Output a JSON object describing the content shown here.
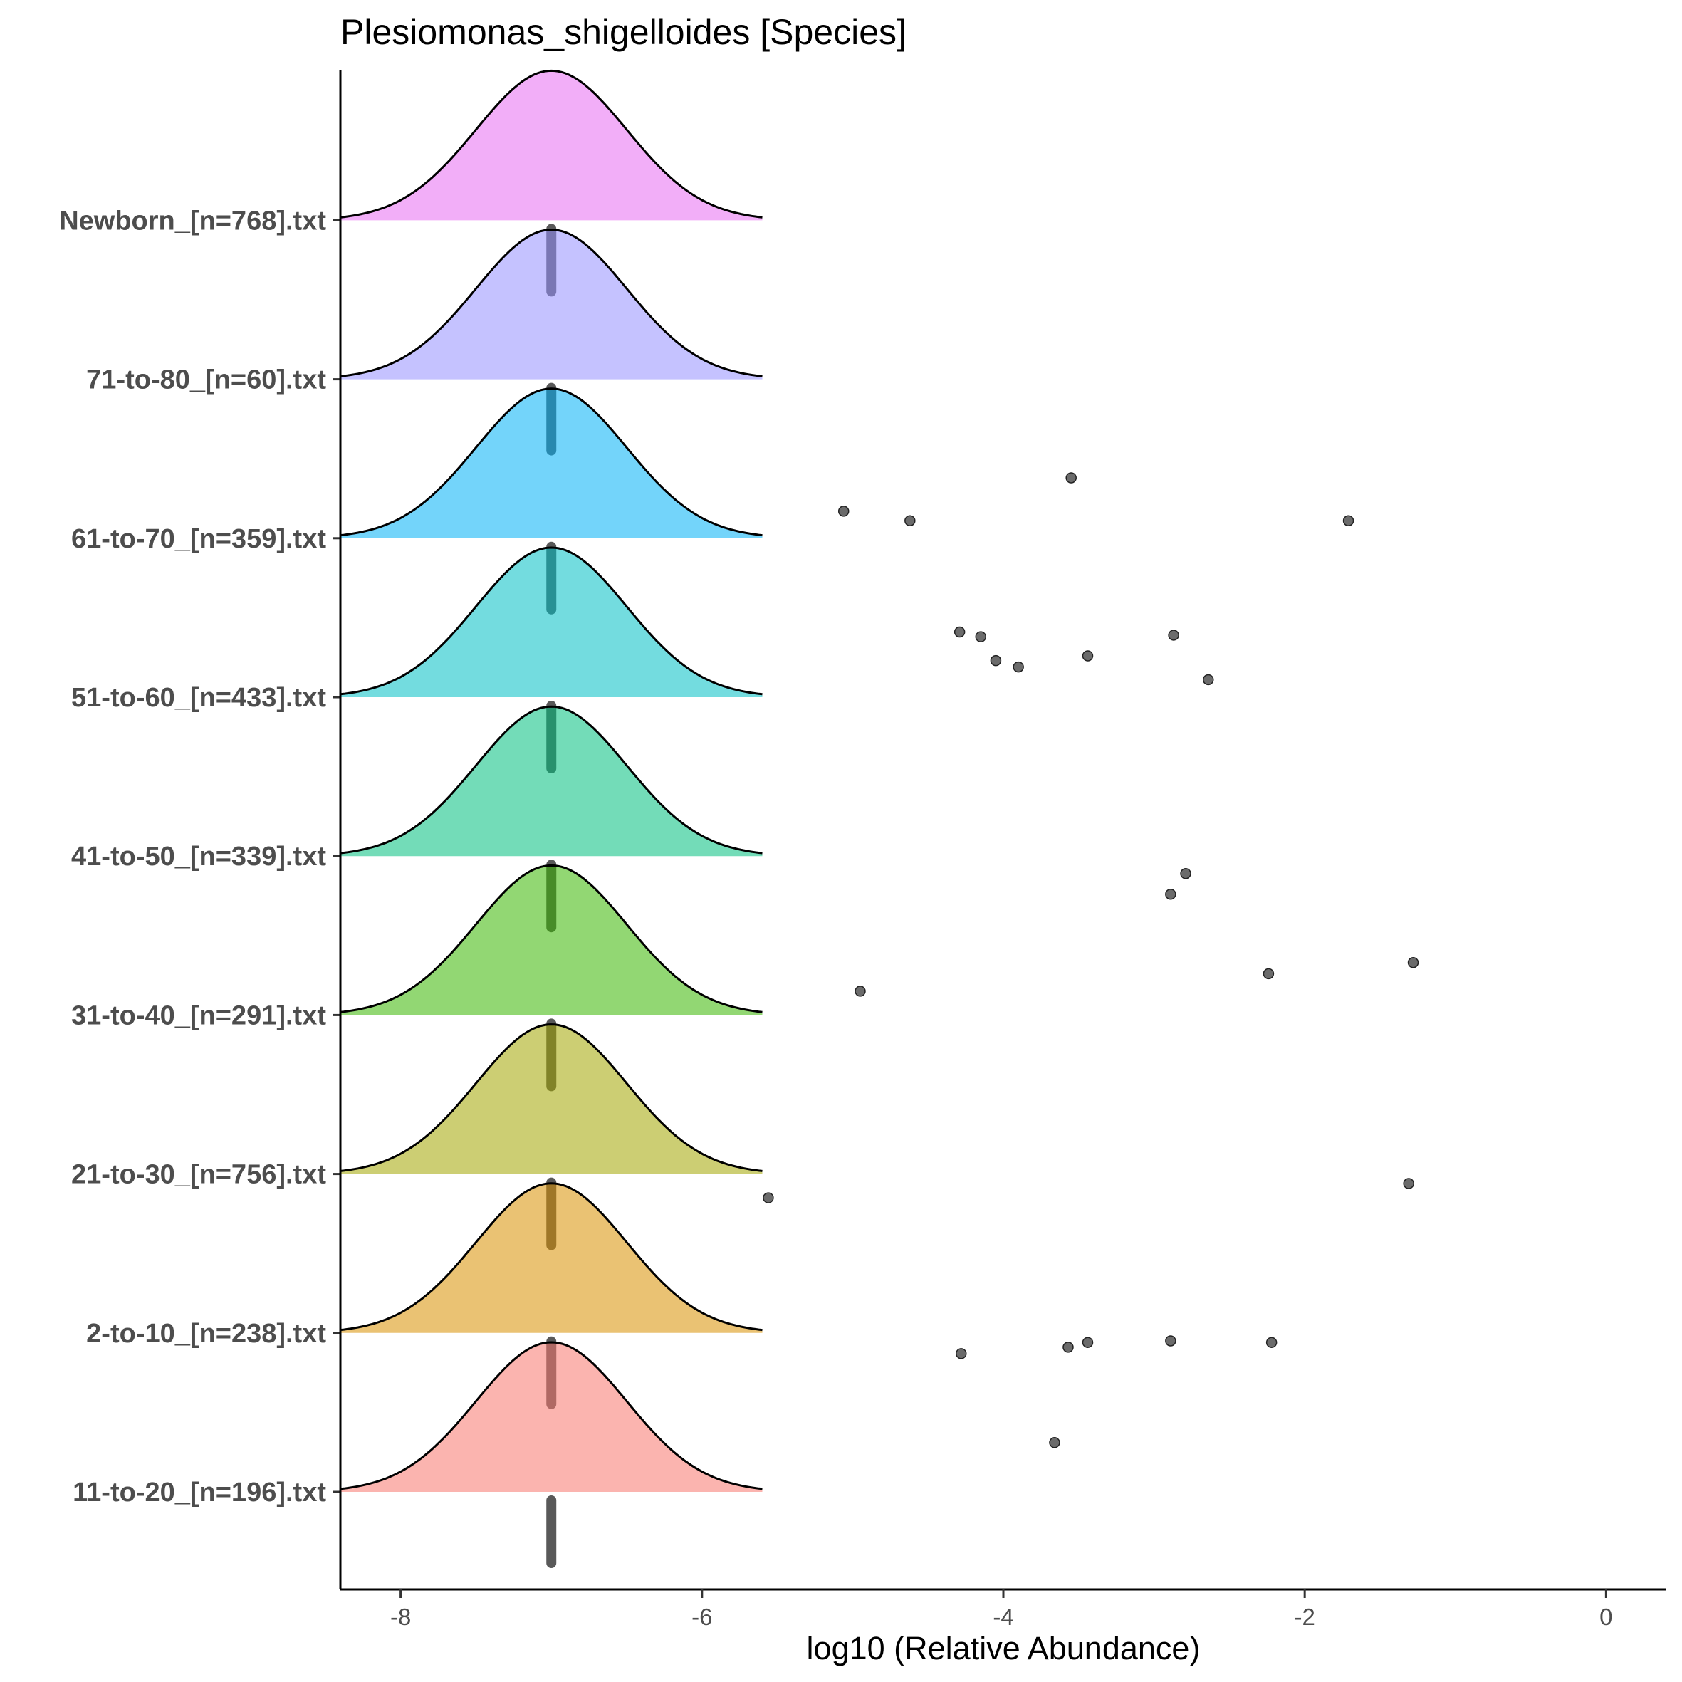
{
  "chart_data": {
    "type": "ridgeline",
    "title": "Plesiomonas_shigelloides [Species]",
    "xlabel": "log10 (Relative Abundance)",
    "ylabel": "",
    "xlim": [
      -8.4,
      0.4
    ],
    "x_ticks": [
      -8,
      -6,
      -4,
      -2,
      0
    ],
    "x_tick_labels": [
      "-8",
      "-6",
      "-4",
      "-2",
      "0"
    ],
    "grid": false,
    "legend": "none",
    "median_x": -7,
    "density_x_range": [
      -8.4,
      -5.6
    ],
    "density_center": -7,
    "density_sd": 0.5,
    "series": [
      {
        "name": "11-to-20_[n=196].txt",
        "fill": "#F8766D",
        "median_color": "#000000",
        "outliers": [
          {
            "x": -3.66,
            "y": -0.31
          }
        ]
      },
      {
        "name": "2-to-10_[n=238].txt",
        "fill": "#D89000",
        "median_color": "#000000",
        "outliers": [
          {
            "x": -4.28,
            "y": 0.13
          },
          {
            "x": -3.57,
            "y": 0.09
          },
          {
            "x": -3.44,
            "y": 0.06
          },
          {
            "x": -2.89,
            "y": 0.05
          },
          {
            "x": -2.22,
            "y": 0.06
          }
        ]
      },
      {
        "name": "21-to-30_[n=756].txt",
        "fill": "#A3A500",
        "median_color": "#000000",
        "outliers": [
          {
            "x": -5.56,
            "y": 0.15
          },
          {
            "x": -1.31,
            "y": 0.06
          }
        ]
      },
      {
        "name": "31-to-40_[n=291].txt",
        "fill": "#39B600",
        "median_color": "#000000",
        "outliers": [
          {
            "x": -4.95,
            "y": -0.15
          },
          {
            "x": -2.24,
            "y": -0.26
          },
          {
            "x": -1.28,
            "y": -0.33
          }
        ]
      },
      {
        "name": "41-to-50_[n=339].txt",
        "fill": "#00BF7D",
        "median_color": "#000000",
        "outliers": [
          {
            "x": -2.89,
            "y": 0.24
          },
          {
            "x": -2.79,
            "y": 0.11
          }
        ]
      },
      {
        "name": "51-to-60_[n=433].txt",
        "fill": "#00BFC4",
        "median_color": "#000000",
        "outliers": [
          {
            "x": -2.64,
            "y": -0.11
          },
          {
            "x": -3.9,
            "y": -0.19
          },
          {
            "x": -4.05,
            "y": -0.23
          },
          {
            "x": -3.44,
            "y": -0.26
          },
          {
            "x": -4.15,
            "y": -0.38
          },
          {
            "x": -4.29,
            "y": -0.41
          },
          {
            "x": -2.87,
            "y": -0.39
          }
        ]
      },
      {
        "name": "61-to-70_[n=359].txt",
        "fill": "#00B0F6",
        "median_color": "#000000",
        "outliers": [
          {
            "x": -4.62,
            "y": -0.11
          },
          {
            "x": -1.71,
            "y": -0.11
          },
          {
            "x": -5.06,
            "y": -0.17
          },
          {
            "x": -3.55,
            "y": -0.38
          }
        ]
      },
      {
        "name": "71-to-80_[n=60].txt",
        "fill": "#9590FF",
        "median_color": "#000000",
        "outliers": []
      },
      {
        "name": "Newborn_[n=768].txt",
        "fill": "#E76BF3",
        "median_color": "#000000",
        "outliers": []
      }
    ]
  }
}
